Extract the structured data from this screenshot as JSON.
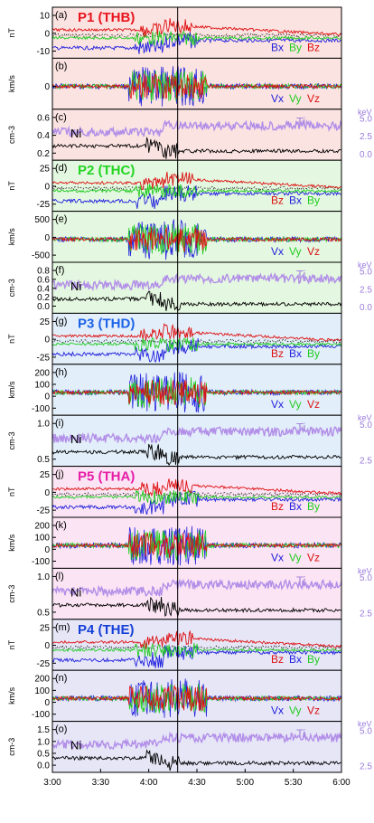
{
  "chart_data": {
    "type": "line",
    "x_ticks": [
      "3:00",
      "3:30",
      "4:00",
      "4:30",
      "5:00",
      "5:30",
      "6:00"
    ],
    "xlim": [
      "3:00",
      "6:00"
    ],
    "vertical_marker": "4:18",
    "groups": [
      {
        "probe_label": "P1 (THB)",
        "probe_color": "#e8141e",
        "background": "#fbe3e1"
      },
      {
        "probe_label": "P2 (THC)",
        "probe_color": "#22d522",
        "background": "#e4f7e0"
      },
      {
        "probe_label": "P3 (THD)",
        "probe_color": "#1c62e8",
        "background": "#e2eef9"
      },
      {
        "probe_label": "P5 (THA)",
        "probe_color": "#e61ea8",
        "background": "#fbe4f3"
      },
      {
        "probe_label": "P4 (THE)",
        "probe_color": "#1540d8",
        "background": "#e6e6f7"
      }
    ],
    "panels": [
      {
        "letter": "(a)",
        "type": "B",
        "unit": "nT",
        "ticks": [
          "10",
          "0",
          "-10"
        ],
        "legend": [
          "Bx",
          "By",
          "Bz"
        ],
        "legend_colors": [
          "#2222dd",
          "#22cc22",
          "#dd1111"
        ]
      },
      {
        "letter": "(b)",
        "type": "V",
        "unit": "km/s",
        "ticks": [
          "0"
        ],
        "legend": [
          "Vx",
          "Vy",
          "Vz"
        ],
        "legend_colors": [
          "#2222dd",
          "#22cc22",
          "#dd1111"
        ]
      },
      {
        "letter": "(c)",
        "type": "N",
        "unit": "cm-3",
        "ticks": [
          "0.6",
          "0.4",
          "0.2"
        ],
        "right_unit": "keV",
        "right_ticks": [
          "5.0",
          "2.5",
          "0.0"
        ],
        "ni_label": "Ni",
        "ti_label": "Ti"
      },
      {
        "letter": "(d)",
        "type": "B",
        "unit": "nT",
        "ticks": [
          "25",
          "0",
          "-25"
        ],
        "legend": [
          "Bz",
          "Bx",
          "By"
        ],
        "legend_colors": [
          "#dd1111",
          "#2222dd",
          "#22cc22"
        ]
      },
      {
        "letter": "(e)",
        "type": "V",
        "unit": "km/s",
        "ticks": [
          "500",
          "0",
          "-500"
        ],
        "legend": [
          "Vx",
          "Vy",
          "Vz"
        ],
        "legend_colors": [
          "#2222dd",
          "#22cc22",
          "#dd1111"
        ]
      },
      {
        "letter": "(f)",
        "type": "N",
        "unit": "cm-3",
        "ticks": [
          "0.8",
          "0.6",
          "0.4",
          "0.2",
          "0.0"
        ],
        "right_unit": "keV",
        "right_ticks": [
          "5.0",
          "2.5",
          "0.0"
        ],
        "ni_label": "Ni",
        "ti_label": "Ti"
      },
      {
        "letter": "(g)",
        "type": "B",
        "unit": "nT",
        "ticks": [
          "25",
          "0",
          "-25"
        ],
        "legend": [
          "Bz",
          "Bx",
          "By"
        ],
        "legend_colors": [
          "#dd1111",
          "#2222dd",
          "#22cc22"
        ]
      },
      {
        "letter": "(h)",
        "type": "V",
        "unit": "km/s",
        "ticks": [
          "200",
          "100",
          "0",
          "-100"
        ],
        "legend": [
          "Vx",
          "Vy",
          "Vz"
        ],
        "legend_colors": [
          "#2222dd",
          "#22cc22",
          "#dd1111"
        ]
      },
      {
        "letter": "(i)",
        "type": "N",
        "unit": "cm-3",
        "ticks": [
          "1.0",
          "0.5"
        ],
        "right_unit": "keV",
        "right_ticks": [
          "5.0",
          "2.5"
        ],
        "ni_label": "Ni",
        "ti_label": "Ti"
      },
      {
        "letter": "(j)",
        "type": "B",
        "unit": "nT",
        "ticks": [
          "25",
          "0",
          "-25"
        ],
        "legend": [
          "Bz",
          "Bx",
          "By"
        ],
        "legend_colors": [
          "#dd1111",
          "#2222dd",
          "#22cc22"
        ]
      },
      {
        "letter": "(k)",
        "type": "V",
        "unit": "km/s",
        "ticks": [
          "200",
          "100",
          "0",
          "-100"
        ],
        "legend": [
          "Vx",
          "Vy",
          "Vz"
        ],
        "legend_colors": [
          "#2222dd",
          "#22cc22",
          "#dd1111"
        ]
      },
      {
        "letter": "(l)",
        "type": "N",
        "unit": "cm-3",
        "ticks": [
          "1.0",
          "0.5"
        ],
        "right_unit": "keV",
        "right_ticks": [
          "5.0",
          "2.5"
        ],
        "ni_label": "Ni",
        "ti_label": "Ti"
      },
      {
        "letter": "(m)",
        "type": "B",
        "unit": "nT",
        "ticks": [
          "25",
          "0",
          "-25"
        ],
        "legend": [
          "Bz",
          "Bx",
          "By"
        ],
        "legend_colors": [
          "#dd1111",
          "#2222dd",
          "#22cc22"
        ]
      },
      {
        "letter": "(n)",
        "type": "V",
        "unit": "km/s",
        "ticks": [
          "200",
          "100",
          "0",
          "-100"
        ],
        "legend": [
          "Vx",
          "Vy",
          "Vz"
        ],
        "legend_colors": [
          "#2222dd",
          "#22cc22",
          "#dd1111"
        ]
      },
      {
        "letter": "(o)",
        "type": "N",
        "unit": "cm-3",
        "ticks": [
          "1.5",
          "1.0",
          "0.5",
          "0.0"
        ],
        "right_unit": "keV",
        "right_ticks": [
          "5.0",
          "2.5"
        ],
        "ni_label": "Ni",
        "ti_label": "Ti"
      }
    ]
  }
}
